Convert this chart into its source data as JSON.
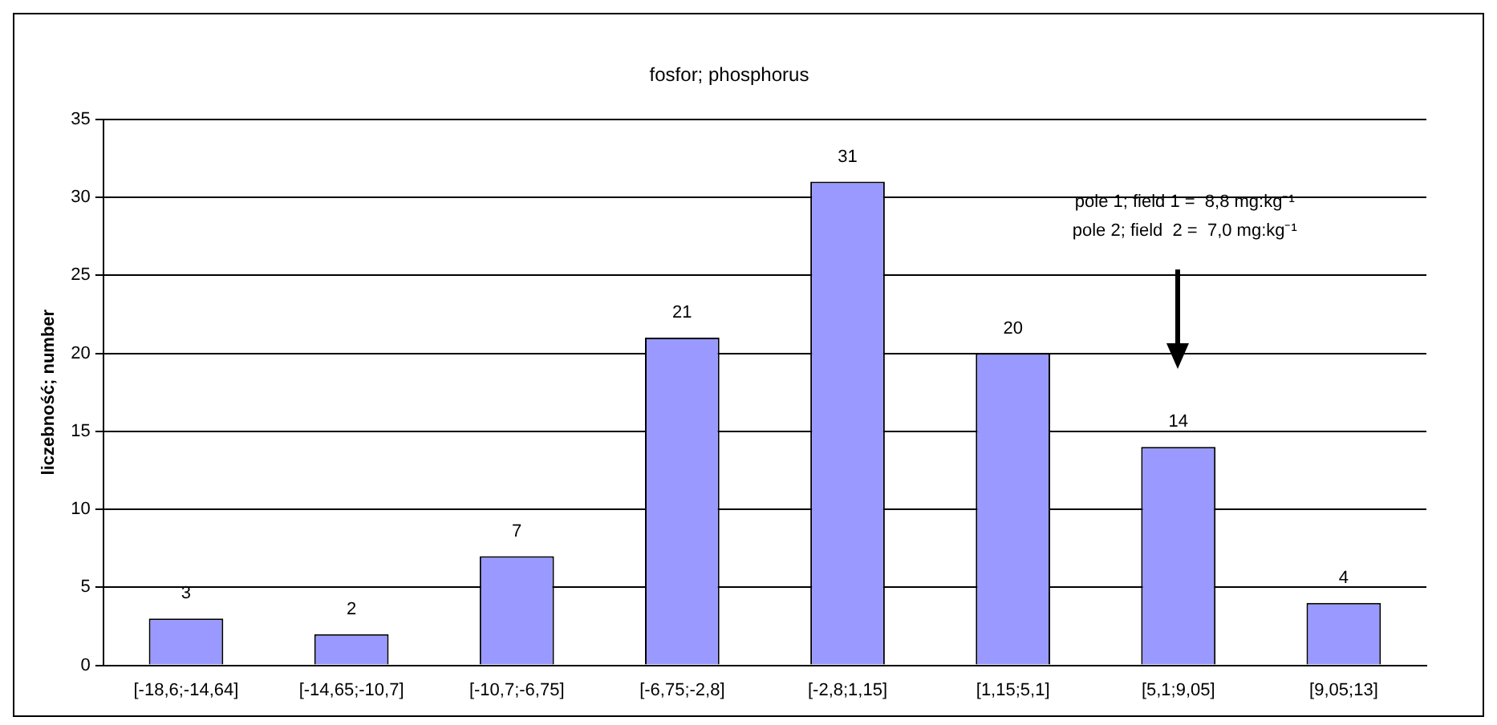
{
  "chart_data": {
    "type": "bar",
    "title": "fosfor; phosphorus",
    "ylabel": "liczebność; number",
    "categories": [
      "[-18,6;-14,64]",
      "[-14,65;-10,7]",
      "[-10,7;-6,75]",
      "[-6,75;-2,8]",
      "[-2,8;1,15]",
      "[1,15;5,1]",
      "[5,1;9,05]",
      "[9,05;13]"
    ],
    "values": [
      3,
      2,
      7,
      21,
      31,
      20,
      14,
      4
    ],
    "color": "#9999ff",
    "ylim": [
      0,
      35
    ],
    "yticks": [
      0,
      5,
      10,
      15,
      20,
      25,
      30,
      35
    ],
    "grid": "y",
    "legend": false,
    "data_labels": true,
    "annotations": [
      "pole 1; field 1 =  8,8 mg:kg⁻¹",
      "pole 2; field  2 =  7,0 mg:kg⁻¹"
    ]
  }
}
